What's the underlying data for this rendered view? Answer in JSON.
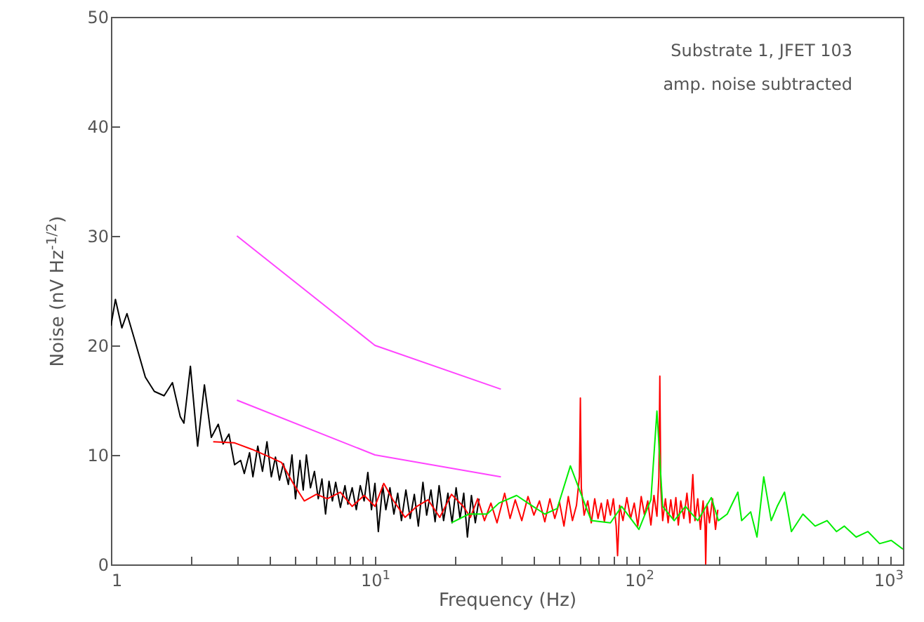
{
  "chart_data": {
    "type": "line",
    "xlabel": "Frequency (Hz)",
    "ylabel": "Noise (nV Hz$^{-1/2}$)",
    "annotations": [
      "Substrate 1, JFET 103",
      "amp. noise subtracted"
    ],
    "log": "x",
    "grid": false,
    "xlim": [
      1,
      1000
    ],
    "ylim": [
      0,
      50
    ],
    "xticks": [
      1,
      {
        "value": 2,
        "label": null
      },
      {
        "value": 3,
        "label": null
      },
      {
        "value": 4,
        "label": null
      },
      {
        "value": 5,
        "label": null
      },
      {
        "value": 6,
        "label": null
      },
      {
        "value": 7,
        "label": null
      },
      {
        "value": 8,
        "label": null
      },
      {
        "value": 9,
        "label": null
      },
      {
        "value": 10,
        "label": "10$^{1}$"
      },
      {
        "value": 20,
        "label": null
      },
      {
        "value": 30,
        "label": null
      },
      {
        "value": 40,
        "label": null
      },
      {
        "value": 50,
        "label": null
      },
      {
        "value": 60,
        "label": null
      },
      {
        "value": 70,
        "label": null
      },
      {
        "value": 80,
        "label": null
      },
      {
        "value": 90,
        "label": null
      },
      {
        "value": 100,
        "label": "10$^{2}$"
      },
      {
        "value": 200,
        "label": null
      },
      {
        "value": 300,
        "label": null
      },
      {
        "value": 400,
        "label": null
      },
      {
        "value": 500,
        "label": null
      },
      {
        "value": 600,
        "label": null
      },
      {
        "value": 700,
        "label": null
      },
      {
        "value": 800,
        "label": null
      },
      {
        "value": 900,
        "label": null
      },
      {
        "value": 1000,
        "label": "10$^{3}$"
      }
    ],
    "yticks": [
      0,
      10,
      20,
      30,
      40,
      50
    ],
    "series": [
      {
        "color": "#000000",
        "x": [
          1,
          1.04,
          1.1,
          1.15,
          1.23,
          1.35,
          1.46,
          1.59,
          1.71,
          1.83,
          1.89,
          2.0,
          2.13,
          2.26,
          2.4,
          2.55,
          2.66,
          2.8,
          2.94,
          3.1,
          3.2,
          3.35,
          3.45,
          3.6,
          3.75,
          3.9,
          4.05,
          4.2,
          4.35,
          4.5,
          4.7,
          4.85,
          5.0,
          5.2,
          5.35,
          5.5,
          5.7,
          5.9,
          6.1,
          6.3,
          6.5,
          6.7,
          6.9,
          7.1,
          7.4,
          7.7,
          7.9,
          8.2,
          8.5,
          8.8,
          9.1,
          9.4,
          9.7,
          10.0,
          10.3,
          10.7,
          11.0,
          11.4,
          11.8,
          12.2,
          12.6,
          13.1,
          13.6,
          14.1,
          14.6,
          15.2,
          15.7,
          16.3,
          16.9,
          17.5,
          18.2,
          18.9,
          19.6,
          20.3,
          21.0,
          21.7,
          22.4,
          23.2,
          24.0,
          24.8
        ],
        "values": [
          21.8,
          24.2,
          21.6,
          22.9,
          20.5,
          17.1,
          15.8,
          15.4,
          16.6,
          13.5,
          12.9,
          18.1,
          10.8,
          16.4,
          11.6,
          12.8,
          11,
          11.9,
          9.1,
          9.5,
          8.3,
          10.2,
          8.0,
          10.8,
          8.5,
          11.2,
          8.0,
          9.8,
          7.7,
          9.2,
          7.3,
          10.0,
          6.0,
          9.5,
          6.8,
          10.0,
          7.0,
          8.5,
          6.0,
          7.8,
          4.6,
          7.6,
          5.8,
          7.5,
          5.2,
          7.2,
          5.5,
          7.0,
          5.0,
          7.2,
          5.8,
          8.4,
          5.0,
          7.4,
          3.0,
          7.2,
          5.0,
          7.0,
          4.6,
          6.5,
          4.0,
          6.8,
          4.2,
          6.4,
          3.5,
          7.5,
          4.5,
          6.8,
          3.9,
          7.2,
          4.0,
          6.5,
          3.8,
          7.0,
          4.2,
          6.5,
          2.5,
          6.3,
          3.8,
          6.0
        ]
      },
      {
        "color": "#ff0000",
        "x": [
          2.44,
          2.94,
          3.43,
          4.0,
          4.43,
          4.9,
          5.4,
          6.0,
          6.6,
          7.4,
          8.2,
          9.1,
          10.0,
          10.8,
          11.7,
          13.0,
          14.4,
          15.9,
          17.6,
          19.5,
          21.6,
          23,
          24.5,
          26,
          27.5,
          29,
          31,
          32.5,
          34,
          36,
          38,
          40,
          42,
          44,
          46,
          48,
          50,
          52,
          54,
          56,
          58,
          59.5,
          60,
          60.5,
          62,
          64,
          66,
          68,
          70,
          72,
          74,
          76,
          78,
          80,
          82,
          83,
          84.5,
          87,
          90,
          93,
          96,
          99,
          102,
          105,
          108,
          111,
          114,
          117,
          119,
          120,
          121,
          123,
          126,
          129,
          132,
          135,
          138,
          141,
          144,
          148,
          152,
          156,
          160,
          163,
          167,
          171,
          175,
          178,
          179,
          181,
          185,
          190,
          195,
          199
        ],
        "values": [
          11.2,
          11.1,
          10.5,
          9.8,
          9.3,
          7.4,
          5.8,
          6.4,
          6.0,
          6.6,
          5.3,
          6.3,
          5.3,
          7.4,
          5.9,
          4.3,
          5.3,
          5.9,
          4.3,
          6.4,
          5.3,
          4.3,
          6.0,
          4.0,
          5.6,
          3.8,
          6.5,
          4.2,
          5.9,
          4.0,
          6.2,
          4.5,
          5.8,
          3.9,
          6.0,
          4.2,
          5.7,
          3.5,
          6.2,
          4.0,
          5.4,
          8,
          15.2,
          7,
          4.5,
          5.8,
          3.8,
          6.0,
          4.2,
          5.6,
          3.9,
          5.9,
          4.5,
          6.0,
          3.5,
          0.8,
          5.4,
          4.0,
          6.1,
          4.2,
          5.6,
          3.5,
          6.2,
          4.5,
          5.8,
          3.6,
          6.3,
          4.4,
          8,
          17.2,
          7,
          4.0,
          6.0,
          3.8,
          5.9,
          4.1,
          6.1,
          3.6,
          5.8,
          4.2,
          6.5,
          3.8,
          8.2,
          4.0,
          6.0,
          3.2,
          5.8,
          3.5,
          0,
          5.5,
          3.8,
          6.0,
          3.2,
          5.0
        ]
      },
      {
        "color": "#00ee00",
        "x": [
          19.5,
          22.7,
          26.6,
          29.5,
          34.4,
          38,
          44,
          49,
          55,
          60,
          66,
          78,
          86,
          100,
          111,
          117,
          123,
          136,
          150,
          167,
          188,
          200,
          216,
          237,
          245,
          265,
          280,
          297,
          317,
          334,
          356,
          378,
          418,
          465,
          516,
          560,
          600,
          665,
          737,
          816,
          903,
          1000
        ],
        "values": [
          3.8,
          4.6,
          4.6,
          5.6,
          6.3,
          5.6,
          4.6,
          5.1,
          9.0,
          6.6,
          4.0,
          3.8,
          5.3,
          3.2,
          5.9,
          14.0,
          5.3,
          4.0,
          5.3,
          4.0,
          6.1,
          4.0,
          4.6,
          6.6,
          4.0,
          4.8,
          2.5,
          8.0,
          4.0,
          5.3,
          6.6,
          3.0,
          4.6,
          3.5,
          4.0,
          3.0,
          3.5,
          2.5,
          3.0,
          1.9,
          2.2,
          1.4
        ]
      },
      {
        "color": "#ff44ff",
        "x": [
          3,
          10,
          30
        ],
        "values": [
          30,
          20,
          16
        ]
      },
      {
        "color": "#ff44ff",
        "x": [
          3,
          10,
          30
        ],
        "values": [
          15,
          10,
          8
        ]
      }
    ]
  }
}
